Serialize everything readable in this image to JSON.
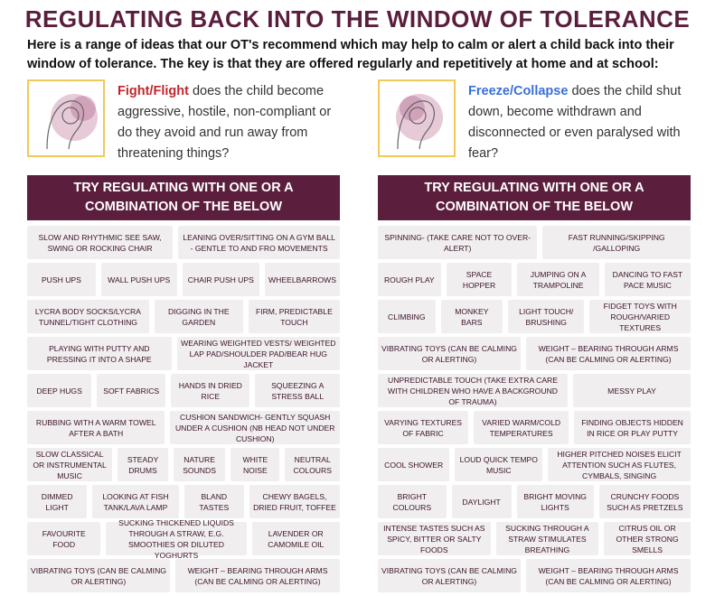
{
  "title": "REGULATING BACK INTO THE WINDOW OF TOLERANCE",
  "intro": "Here is a range of ideas that our OT's recommend which may help to calm or alert a child back into their window of tolerance. The key is that they are offered regularly and repetitively at home and at school:",
  "columns": [
    {
      "lead": "Fight/Flight",
      "text": "does the child become aggressive, hostile, non-compliant or do they avoid and run away from threatening things?",
      "banner": "TRY REGULATING WITH ONE OR A COMBINATION OF THE BELOW",
      "rows": [
        [
          "SLOW AND RHYTHMIC SEE SAW, SWING OR ROCKING CHAIR",
          "LEANING OVER/SITTING ON A GYM BALL - GENTLE TO AND FRO MOVEMENTS"
        ],
        [
          "PUSH UPS",
          "WALL PUSH UPS",
          "CHAIR PUSH UPS",
          "WHEELBARROWS"
        ],
        [
          "LYCRA BODY SOCKS/LYCRA TUNNEL/TIGHT CLOTHING",
          "DIGGING IN THE GARDEN",
          "FIRM, PREDICTABLE TOUCH"
        ],
        [
          "PLAYING WITH PUTTY AND PRESSING IT INTO A SHAPE",
          "WEARING WEIGHTED VESTS/ WEIGHTED LAP PAD/SHOULDER PAD/BEAR HUG JACKET"
        ],
        [
          "DEEP HUGS",
          "SOFT FABRICS",
          "HANDS IN DRIED RICE",
          "SQUEEZING A STRESS BALL"
        ],
        [
          "RUBBING WITH A WARM TOWEL AFTER A BATH",
          "CUSHION SANDWICH- GENTLY SQUASH UNDER A CUSHION (NB HEAD NOT UNDER CUSHION)"
        ],
        [
          "SLOW CLASSICAL OR INSTRUMENTAL MUSIC",
          "STEADY DRUMS",
          "NATURE SOUNDS",
          "WHITE NOISE",
          "NEUTRAL COLOURS"
        ],
        [
          "DIMMED LIGHT",
          "LOOKING AT FISH TANK/LAVA LAMP",
          "BLAND TASTES",
          "CHEWY BAGELS, DRIED FRUIT, TOFFEE"
        ],
        [
          "FAVOURITE FOOD",
          "SUCKING THICKENED LIQUIDS THROUGH A STRAW, E.G. SMOOTHIES OR DILUTED YOGHURTS",
          "LAVENDER OR CAMOMILE OIL"
        ],
        [
          "VIBRATING TOYS (CAN BE CALMING OR ALERTING)",
          "WEIGHT – BEARING THROUGH ARMS (CAN BE CALMING OR ALERTING)"
        ]
      ]
    },
    {
      "lead": "Freeze/Collapse",
      "text": "does the child shut down, become withdrawn and disconnected or even paralysed with fear?",
      "banner": "TRY REGULATING WITH ONE OR A COMBINATION OF THE BELOW",
      "rows": [
        [
          "SPINNING- (TAKE CARE NOT TO OVER- ALERT)",
          "FAST RUNNING/SKIPPING /GALLOPING"
        ],
        [
          "ROUGH PLAY",
          "SPACE HOPPER",
          "JUMPING ON A TRAMPOLINE",
          "DANCING TO FAST PACE MUSIC"
        ],
        [
          "CLIMBING",
          "MONKEY BARS",
          "LIGHT TOUCH/ BRUSHING",
          "FIDGET TOYS WITH ROUGH/VARIED TEXTURES"
        ],
        [
          "VIBRATING TOYS (CAN BE CALMING OR ALERTING)",
          "WEIGHT – BEARING THROUGH ARMS (CAN BE CALMING OR ALERTING)"
        ],
        [
          "UNPREDICTABLE TOUCH (TAKE EXTRA CARE WITH CHILDREN WHO HAVE A BACKGROUND OF TRAUMA)",
          "MESSY PLAY"
        ],
        [
          "VARYING TEXTURES OF FABRIC",
          "VARIED WARM/COLD TEMPERATURES",
          "FINDING OBJECTS HIDDEN IN RICE OR PLAY PUTTY"
        ],
        [
          "COOL SHOWER",
          "LOUD QUICK TEMPO MUSIC",
          "HIGHER PITCHED NOISES ELICIT ATTENTION SUCH AS FLUTES, CYMBALS, SINGING"
        ],
        [
          "BRIGHT COLOURS",
          "DAYLIGHT",
          "BRIGHT MOVING LIGHTS",
          "CRUNCHY FOODS SUCH AS PRETZELS"
        ],
        [
          "INTENSE TASTES SUCH AS SPICY, BITTER OR SALTY FOODS",
          "SUCKING THROUGH A STRAW STIMULATES BREATHING",
          "CITRUS OIL OR OTHER STRONG SMELLS"
        ],
        [
          "VIBRATING TOYS (CAN BE CALMING OR ALERTING)",
          "WEIGHT – BEARING THROUGH ARMS (CAN BE CALMING OR ALERTING)"
        ]
      ]
    }
  ]
}
